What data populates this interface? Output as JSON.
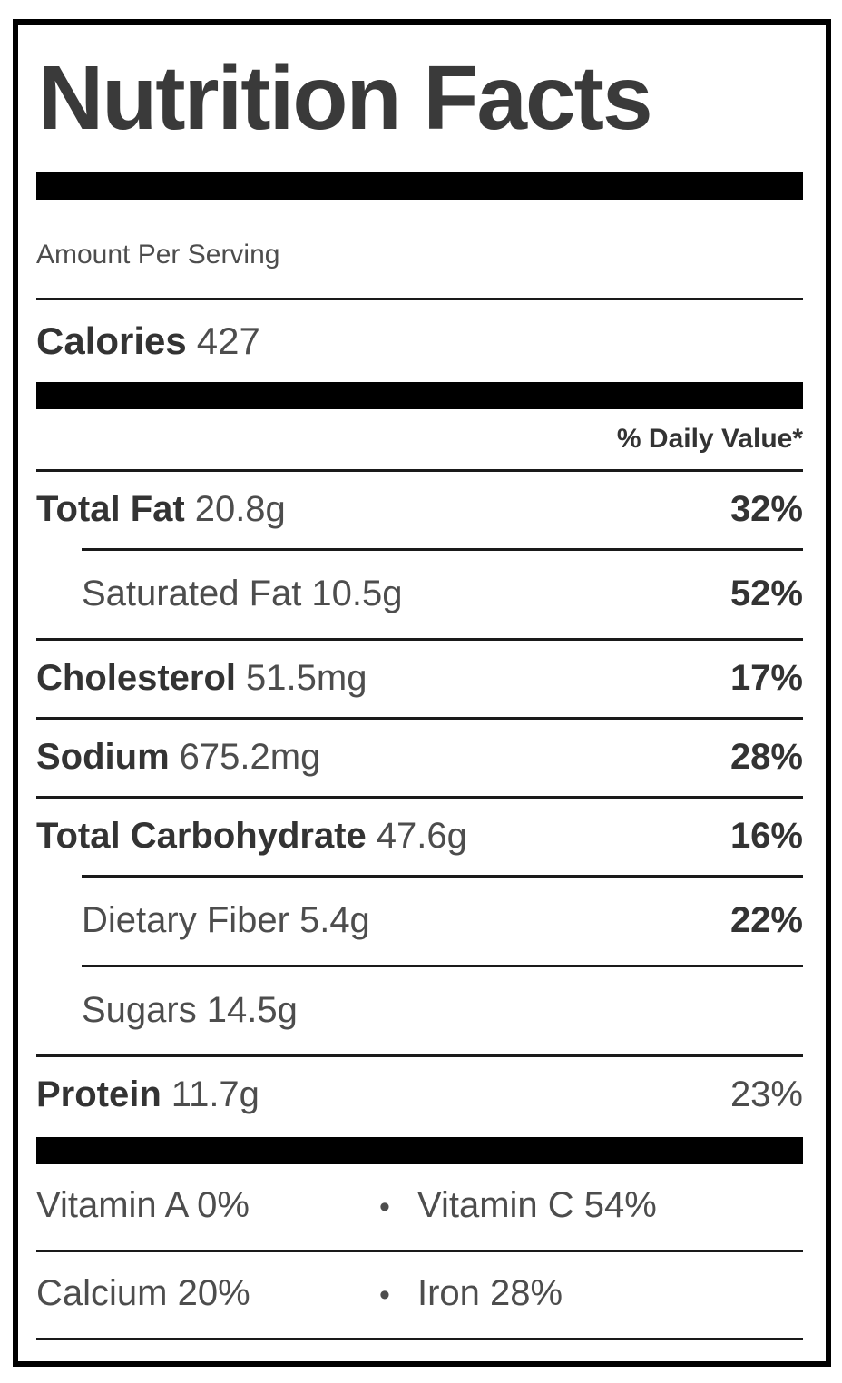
{
  "label": {
    "title": "Nutrition Facts",
    "amount_per_serving": "Amount Per Serving",
    "calories": {
      "name": "Calories",
      "value": "427"
    },
    "daily_value_header": "% Daily Value*",
    "nutrients": [
      {
        "name": "Total Fat",
        "amount": "20.8g",
        "dv": "32%"
      },
      {
        "name": "Saturated Fat",
        "amount": "10.5g",
        "dv": "52%"
      },
      {
        "name": "Cholesterol",
        "amount": "51.5mg",
        "dv": "17%"
      },
      {
        "name": "Sodium",
        "amount": "675.2mg",
        "dv": "28%"
      },
      {
        "name": "Total Carbohydrate",
        "amount": "47.6g",
        "dv": "16%"
      },
      {
        "name": "Dietary Fiber",
        "amount": "5.4g",
        "dv": "22%"
      },
      {
        "name": "Sugars",
        "amount": "14.5g",
        "dv": ""
      },
      {
        "name": "Protein",
        "amount": "11.7g",
        "dv": "23%"
      }
    ],
    "micronutrients": [
      {
        "left": "Vitamin A 0%",
        "right": "Vitamin C 54%"
      },
      {
        "left": "Calcium 20%",
        "right": "Iron 28%"
      }
    ],
    "bullet": "•",
    "colors": {
      "background": "#ffffff",
      "border_and_bars": "#000000",
      "text_bold": "#333333",
      "text_regular": "#4d4d4d"
    }
  }
}
